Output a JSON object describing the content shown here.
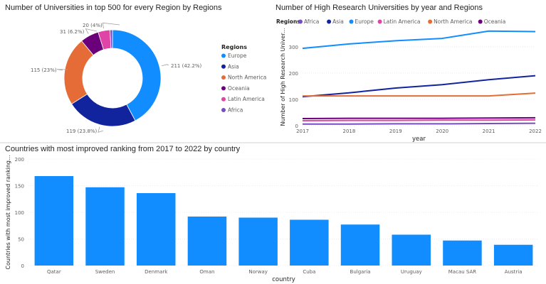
{
  "colors": {
    "Europe": "#118dff",
    "Asia": "#12239e",
    "North America": "#e66c37",
    "Oceania": "#6b007b",
    "Latin America": "#e044a7",
    "Africa": "#744ec2"
  },
  "chart_data": [
    {
      "type": "pie",
      "title": "Number of Universities in top 500 for every Region by Regions",
      "legend_title": "Regions",
      "legend_position": "right",
      "categories": [
        "Europe",
        "Asia",
        "North America",
        "Oceania",
        "Latin America",
        "Africa"
      ],
      "values": [
        211,
        119,
        115,
        31,
        20,
        4
      ],
      "data_labels": [
        "211 (42.2%)",
        "119 (23.8%)",
        "115 (23%)",
        "31 (6.2%)",
        "20 (4%)",
        ""
      ]
    },
    {
      "type": "line",
      "title": "Number of High Research Universities by year and Regions",
      "legend_title": "Regions",
      "legend_position": "top-left",
      "xlabel": "year",
      "ylabel": "Number of High Research Univer...",
      "x": [
        "2017",
        "2018",
        "2019",
        "2020",
        "2021",
        "2022"
      ],
      "yticks": [
        "0",
        "100",
        "200",
        "300"
      ],
      "ylim": [
        0,
        370
      ],
      "grid": true,
      "series": [
        {
          "name": "Africa",
          "values": [
            6,
            6,
            7,
            7,
            8,
            9
          ]
        },
        {
          "name": "Asia",
          "values": [
            110,
            125,
            143,
            156,
            175,
            190
          ]
        },
        {
          "name": "Europe",
          "values": [
            294,
            311,
            323,
            332,
            360,
            358
          ]
        },
        {
          "name": "Latin America",
          "values": [
            19,
            20,
            20,
            21,
            21,
            22
          ]
        },
        {
          "name": "North America",
          "values": [
            113,
            113,
            113,
            113,
            113,
            124
          ]
        },
        {
          "name": "Oceania",
          "values": [
            27,
            28,
            28,
            28,
            29,
            30
          ]
        }
      ]
    },
    {
      "type": "bar",
      "title": "Countries with most improved ranking from 2017 to 2022 by country",
      "xlabel": "country",
      "ylabel": "Countries with most improved ranking...",
      "categories": [
        "Qatar",
        "Sweden",
        "Denmark",
        "Oman",
        "Norway",
        "Cuba",
        "Bulgaria",
        "Uruguay",
        "Macau SAR",
        "Austria"
      ],
      "values": [
        168,
        147,
        136,
        92,
        90,
        86,
        77,
        58,
        47,
        39
      ],
      "yticks": [
        "0",
        "50",
        "100",
        "150",
        "200"
      ],
      "ylim": [
        0,
        200
      ],
      "grid": true,
      "color": "#118dff"
    }
  ]
}
